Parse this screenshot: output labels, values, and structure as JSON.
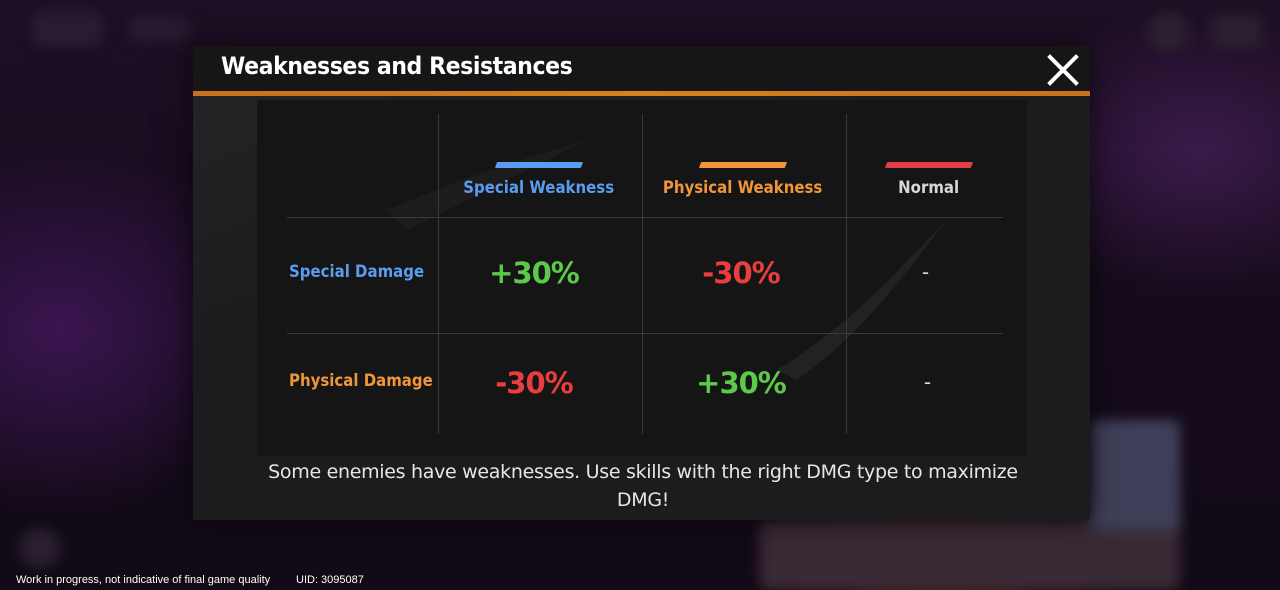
{
  "panel": {
    "title": "Weaknesses and Resistances",
    "close_icon": "close-icon"
  },
  "table": {
    "columns": [
      {
        "label": "Special Weakness",
        "color": "#5b9cf0"
      },
      {
        "label": "Physical Weakness",
        "color": "#f0963a"
      },
      {
        "label": "Normal",
        "color": "#d8d8d8",
        "stripe_color": "#e23d48"
      }
    ],
    "rows": [
      {
        "label": "Special Damage",
        "color": "#5b9cf0",
        "cells": [
          {
            "value": "+30%",
            "color": "#5cc94a"
          },
          {
            "value": "-30%",
            "color": "#ea3e3e"
          },
          {
            "value": "-",
            "color": "#d8d8d8"
          }
        ]
      },
      {
        "label": "Physical Damage",
        "color": "#f0963a",
        "cells": [
          {
            "value": "-30%",
            "color": "#ea3e3e"
          },
          {
            "value": "+30%",
            "color": "#5cc94a"
          },
          {
            "value": "-",
            "color": "#d8d8d8"
          }
        ]
      }
    ]
  },
  "footer": {
    "hint": "Some enemies have weaknesses. Use skills with the right DMG type to maximize DMG!"
  },
  "status": {
    "disclaimer": "Work in progress, not indicative of final game quality",
    "uid": "UID: 3095087"
  },
  "colors": {
    "accent_orange": "#d7801f",
    "panel_bg": "#1c1c1e",
    "table_bg": "#151515"
  }
}
